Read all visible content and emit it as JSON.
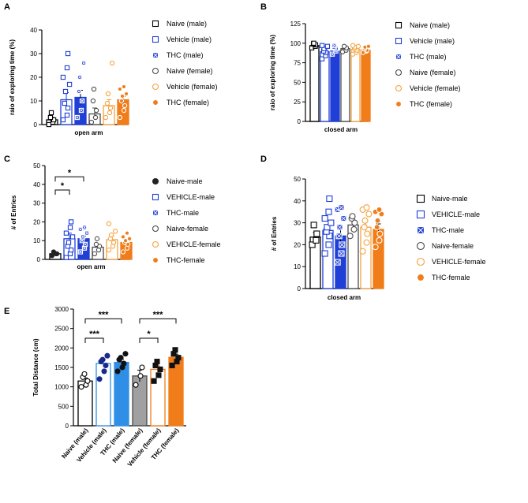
{
  "colors": {
    "black": "#000000",
    "blue": "#1f3fd6",
    "blue_light": "#2f8fe6",
    "gray": "#4a4a4a",
    "gray_fill": "#a0a0a0",
    "orange_light": "#f5a340",
    "orange": "#f07d1a"
  },
  "chart_data": [
    {
      "id": "A",
      "type": "bar",
      "panel": "A",
      "ylabel": "raio of exploring time (%)",
      "xlabel": "open arm",
      "ylim": [
        0,
        40
      ],
      "yticks": [
        0,
        10,
        20,
        30,
        40
      ],
      "categories": [
        "Naive (male)",
        "Vehicle (male)",
        "THC (male)",
        "Naive (female)",
        "Vehicle (female)",
        "THC (female)"
      ],
      "values": [
        2,
        10.5,
        11.5,
        4.5,
        8,
        10.5
      ],
      "errors": [
        1,
        3,
        3,
        2.5,
        2.5,
        1.5
      ],
      "points": [
        [
          0,
          1,
          2,
          3,
          5
        ],
        [
          2,
          4,
          7,
          9,
          14,
          17,
          20,
          24,
          30
        ],
        [
          3,
          6,
          10,
          14,
          20,
          26
        ],
        [
          1,
          3,
          6,
          10,
          15
        ],
        [
          3,
          5,
          7,
          9,
          13,
          26
        ],
        [
          3,
          6,
          8,
          10,
          12,
          13,
          15,
          16
        ]
      ],
      "legend": [
        "Naive (male)",
        "Vehicle (male)",
        "THC (male)",
        "Naive (female)",
        "Vehicle (female)",
        "THC (female)"
      ]
    },
    {
      "id": "B",
      "type": "bar",
      "panel": "B",
      "ylabel": "raio of exploring time (%)",
      "xlabel": "closed arm",
      "ylim": [
        0,
        125
      ],
      "yticks": [
        0,
        25,
        50,
        75,
        100,
        125
      ],
      "categories": [
        "Naive (male)",
        "Vehicle (male)",
        "THC (male)",
        "Naive (female)",
        "Vehicle (female)",
        "THC (female)"
      ],
      "values": [
        97,
        89,
        90,
        93,
        92,
        91
      ],
      "errors": [
        2,
        3,
        2.5,
        2,
        1.5,
        1.5
      ],
      "points": [
        [
          94,
          96,
          98,
          99,
          100
        ],
        [
          80,
          84,
          88,
          90,
          93,
          96,
          97
        ],
        [
          86,
          90,
          93,
          95,
          97
        ],
        [
          89,
          91,
          94,
          96
        ],
        [
          86,
          88,
          91,
          93,
          95,
          96,
          97
        ],
        [
          88,
          90,
          91,
          93,
          95,
          96
        ]
      ],
      "legend": [
        "Naive (male)",
        "Vehicle (male)",
        "THC (male)",
        "Naive (female)",
        "Vehicle (female)",
        "THC (female)"
      ]
    },
    {
      "id": "C",
      "type": "bar",
      "panel": "C",
      "ylabel": "# of Entries",
      "xlabel": "open arm",
      "ylim": [
        0,
        50
      ],
      "yticks": [
        0,
        10,
        20,
        30,
        40,
        50
      ],
      "categories": [
        "Naive-male",
        "VEHICLE-male",
        "THC-male",
        "Naive-female",
        "VEHICLE-female",
        "THC-female"
      ],
      "values": [
        3,
        11,
        11,
        6.5,
        10.5,
        9
      ],
      "errors": [
        0.5,
        3,
        1.5,
        1.5,
        2,
        1.5
      ],
      "points": [
        [
          2,
          3,
          3,
          4
        ],
        [
          1,
          3,
          5,
          7,
          9,
          12,
          14,
          17,
          20
        ],
        [
          4,
          6,
          8,
          10,
          12,
          14,
          16,
          17
        ],
        [
          3,
          5,
          7,
          8,
          11
        ],
        [
          5,
          7,
          9,
          11,
          13,
          15,
          19
        ],
        [
          4,
          6,
          8,
          9,
          10,
          11,
          12,
          14
        ]
      ],
      "significance": [
        {
          "from": 0,
          "to": 1,
          "label": "*"
        },
        {
          "from": 0,
          "to": 2,
          "label": "*"
        }
      ],
      "legend": [
        "Naive-male",
        "VEHICLE-male",
        "THC-male",
        "Naive-female",
        "VEHICLE-female",
        "THC-female"
      ]
    },
    {
      "id": "D",
      "type": "bar",
      "panel": "D",
      "ylabel": "# of Entries",
      "xlabel": "closed arm",
      "ylim": [
        0,
        50
      ],
      "yticks": [
        0,
        10,
        20,
        30,
        40,
        50
      ],
      "categories": [
        "Naive-male",
        "VEHICLE-male",
        "THC-male",
        "Naive-female",
        "VEHICLE-female",
        "THC-female"
      ],
      "values": [
        23.5,
        26.5,
        24,
        29,
        28,
        27
      ],
      "errors": [
        2,
        2.5,
        3,
        2,
        3,
        2.5
      ],
      "points": [
        [
          20,
          22,
          25,
          29
        ],
        [
          16,
          20,
          24,
          26,
          28,
          30,
          32,
          35,
          41
        ],
        [
          12,
          16,
          20,
          24,
          28,
          32,
          36,
          37
        ],
        [
          24,
          27,
          30,
          32,
          33
        ],
        [
          17,
          21,
          25,
          28,
          31,
          34,
          36,
          37
        ],
        [
          19,
          22,
          25,
          28,
          31,
          34,
          35,
          36
        ]
      ],
      "legend": [
        "Naive-male",
        "VEHICLE-male",
        "THC-male",
        "Naive-female",
        "VEHICLE-female",
        "THC-female"
      ]
    },
    {
      "id": "E",
      "type": "bar",
      "panel": "E",
      "ylabel": "Total Distance (cm)",
      "xlabel": "",
      "ylim": [
        0,
        3000
      ],
      "yticks": [
        0,
        500,
        1000,
        1500,
        2000,
        2500,
        3000
      ],
      "categories": [
        "Naive (male)",
        "Vehicle (male)",
        "THC (male)",
        "Naive (female)",
        "Vehicle (female)",
        "THC (female)"
      ],
      "values": [
        1150,
        1600,
        1630,
        1280,
        1450,
        1760
      ],
      "errors": [
        80,
        90,
        80,
        150,
        90,
        80
      ],
      "points": [
        [
          1000,
          1050,
          1150,
          1250,
          1330
        ],
        [
          1200,
          1400,
          1550,
          1650,
          1700,
          1800
        ],
        [
          1400,
          1500,
          1600,
          1700,
          1750,
          1850
        ],
        [
          1050,
          1280,
          1500
        ],
        [
          1150,
          1300,
          1450,
          1550,
          1650
        ],
        [
          1550,
          1650,
          1750,
          1850,
          1950
        ]
      ],
      "significance": [
        {
          "from": 0,
          "to": 1,
          "label": "***"
        },
        {
          "from": 0,
          "to": 2,
          "label": "***"
        },
        {
          "from": 3,
          "to": 4,
          "label": "*"
        },
        {
          "from": 3,
          "to": 5,
          "label": "***"
        }
      ]
    }
  ]
}
